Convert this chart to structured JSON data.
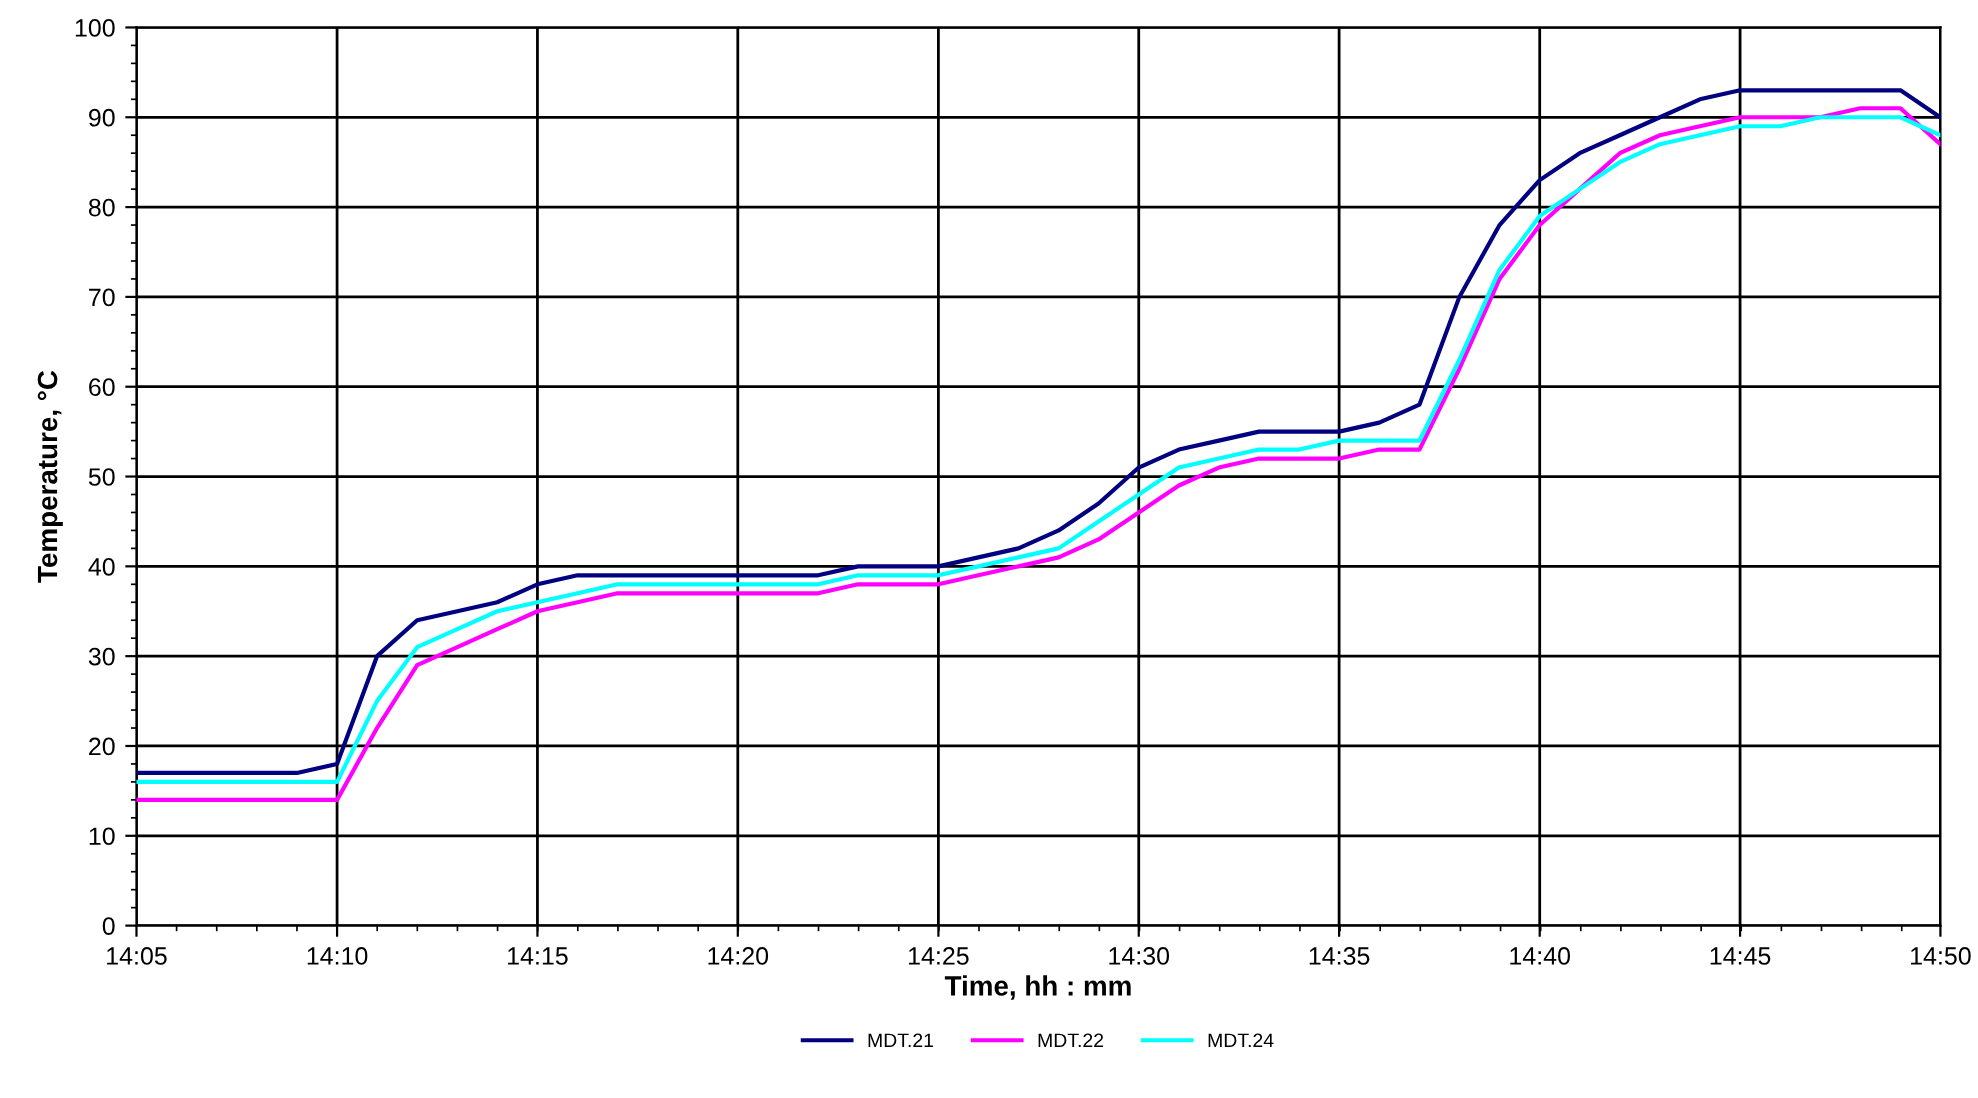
{
  "chart_data": {
    "type": "line",
    "xlabel": "Time, hh : mm",
    "ylabel": "Temperature, °C",
    "x": [
      14.0833,
      14.1,
      14.1167,
      14.1333,
      14.15,
      14.1667,
      14.1833,
      14.2,
      14.2167,
      14.2333,
      14.25,
      14.2667,
      14.2833,
      14.3,
      14.3167,
      14.3333,
      14.35,
      14.3667,
      14.3833,
      14.4,
      14.4167,
      14.4333,
      14.45,
      14.4667,
      14.4833,
      14.5,
      14.5167,
      14.5333,
      14.55,
      14.5667,
      14.5833,
      14.6,
      14.6167,
      14.6333,
      14.65,
      14.6667,
      14.6833,
      14.7,
      14.7167,
      14.7333,
      14.75,
      14.7667,
      14.7833,
      14.8,
      14.8167,
      14.8333
    ],
    "series": [
      {
        "name": "MDT.21",
        "color": "#000080",
        "values": [
          17,
          17,
          17,
          17,
          17,
          18,
          30,
          34,
          35,
          36,
          38,
          39,
          39,
          39,
          39,
          39,
          39,
          39,
          40,
          40,
          40,
          41,
          42,
          44,
          47,
          51,
          53,
          54,
          55,
          55,
          55,
          56,
          58,
          70,
          78,
          83,
          86,
          88,
          90,
          92,
          93,
          93,
          93,
          93,
          93,
          90
        ]
      },
      {
        "name": "MDT.22",
        "color": "#ff00ff",
        "values": [
          14,
          14,
          14,
          14,
          14,
          14,
          22,
          29,
          31,
          33,
          35,
          36,
          37,
          37,
          37,
          37,
          37,
          37,
          38,
          38,
          38,
          39,
          40,
          41,
          43,
          46,
          49,
          51,
          52,
          52,
          52,
          53,
          53,
          62,
          72,
          78,
          82,
          86,
          88,
          89,
          90,
          90,
          90,
          91,
          91,
          87
        ]
      },
      {
        "name": "MDT.24",
        "color": "#00ffff",
        "values": [
          16,
          16,
          16,
          16,
          16,
          16,
          25,
          31,
          33,
          35,
          36,
          37,
          38,
          38,
          38,
          38,
          38,
          38,
          39,
          39,
          39,
          40,
          41,
          42,
          45,
          48,
          51,
          52,
          53,
          53,
          54,
          54,
          54,
          63,
          73,
          79,
          82,
          85,
          87,
          88,
          89,
          89,
          90,
          90,
          90,
          88
        ]
      }
    ],
    "xlim": [
      14.0833,
      14.8333
    ],
    "xticks": [
      {
        "value": 14.0833,
        "label": "14:05"
      },
      {
        "value": 14.1667,
        "label": "14:10"
      },
      {
        "value": 14.25,
        "label": "14:15"
      },
      {
        "value": 14.3333,
        "label": "14:20"
      },
      {
        "value": 14.4167,
        "label": "14:25"
      },
      {
        "value": 14.5,
        "label": "14:30"
      },
      {
        "value": 14.5833,
        "label": "14:35"
      },
      {
        "value": 14.6667,
        "label": "14:40"
      },
      {
        "value": 14.75,
        "label": "14:45"
      },
      {
        "value": 14.8333,
        "label": "14:50"
      }
    ],
    "ylim": [
      0,
      100
    ],
    "yticks": [
      0,
      10,
      20,
      30,
      40,
      50,
      60,
      70,
      80,
      90,
      100
    ],
    "grid": true,
    "legend": "bottom",
    "marker": "none",
    "line_style": "solid"
  }
}
